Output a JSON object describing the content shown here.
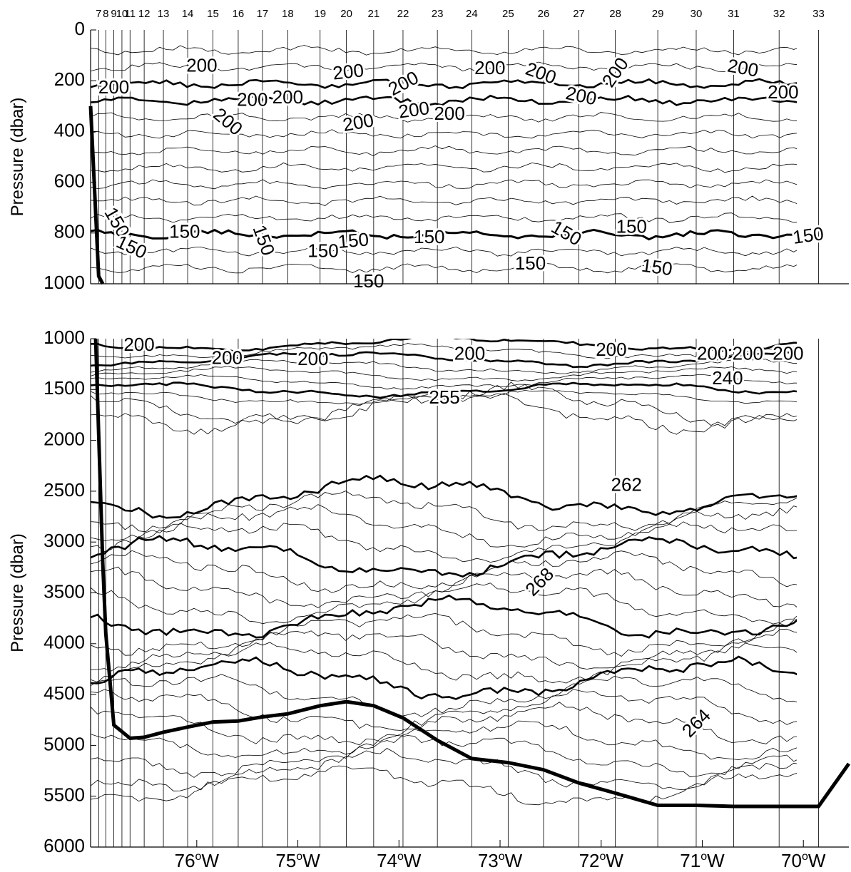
{
  "chart_data": [
    {
      "type": "contour",
      "panel": "upper",
      "title": "",
      "xlabel": "",
      "ylabel": "Pressure (dbar)",
      "ylim": [
        0,
        1000
      ],
      "y_inverted": true,
      "y_ticks": [
        "0",
        "200",
        "400",
        "600",
        "800",
        "1000"
      ],
      "x_range_deg_w": [
        77.05,
        69.55
      ],
      "station_labels": [
        "7",
        "8",
        "9",
        "10",
        "11",
        "12",
        "13",
        "14",
        "15",
        "16",
        "17",
        "18",
        "19",
        "20",
        "21",
        "22",
        "23",
        "24",
        "25",
        "26",
        "27",
        "28",
        "29",
        "30",
        "31",
        "32",
        "33"
      ],
      "station_lon_w": [
        76.97,
        76.9,
        76.82,
        76.74,
        76.66,
        76.52,
        76.33,
        76.09,
        75.84,
        75.59,
        75.35,
        75.1,
        74.78,
        74.52,
        74.25,
        73.96,
        73.62,
        73.28,
        72.92,
        72.57,
        72.22,
        71.86,
        71.44,
        71.06,
        70.69,
        70.24,
        69.85
      ],
      "contour_labels": [
        {
          "text": "200",
          "lon_w": 75.95,
          "pressure": 145,
          "rotate": 0
        },
        {
          "text": "200",
          "lon_w": 74.5,
          "pressure": 170,
          "rotate": -6
        },
        {
          "text": "200",
          "lon_w": 73.95,
          "pressure": 215,
          "rotate": -28
        },
        {
          "text": "200",
          "lon_w": 73.1,
          "pressure": 155,
          "rotate": 0
        },
        {
          "text": "200",
          "lon_w": 72.6,
          "pressure": 175,
          "rotate": 20
        },
        {
          "text": "200",
          "lon_w": 71.85,
          "pressure": 170,
          "rotate": -55
        },
        {
          "text": "200",
          "lon_w": 72.2,
          "pressure": 265,
          "rotate": 12
        },
        {
          "text": "200",
          "lon_w": 70.6,
          "pressure": 155,
          "rotate": 10
        },
        {
          "text": "200",
          "lon_w": 70.2,
          "pressure": 250,
          "rotate": 0
        },
        {
          "text": "200",
          "lon_w": 75.45,
          "pressure": 280,
          "rotate": 0
        },
        {
          "text": "200",
          "lon_w": 75.1,
          "pressure": 270,
          "rotate": 0
        },
        {
          "text": "200",
          "lon_w": 75.7,
          "pressure": 365,
          "rotate": 40
        },
        {
          "text": "200",
          "lon_w": 74.4,
          "pressure": 370,
          "rotate": -10
        },
        {
          "text": "200",
          "lon_w": 73.85,
          "pressure": 320,
          "rotate": -8
        },
        {
          "text": "200",
          "lon_w": 73.5,
          "pressure": 335,
          "rotate": 0
        },
        {
          "text": "200",
          "lon_w": 76.82,
          "pressure": 230,
          "rotate": 0
        },
        {
          "text": "150",
          "lon_w": 76.8,
          "pressure": 760,
          "rotate": 60
        },
        {
          "text": "150",
          "lon_w": 76.65,
          "pressure": 860,
          "rotate": 25
        },
        {
          "text": "150",
          "lon_w": 76.12,
          "pressure": 800,
          "rotate": 0
        },
        {
          "text": "150",
          "lon_w": 75.35,
          "pressure": 830,
          "rotate": 70
        },
        {
          "text": "150",
          "lon_w": 74.75,
          "pressure": 875,
          "rotate": 0
        },
        {
          "text": "150",
          "lon_w": 74.45,
          "pressure": 835,
          "rotate": -5
        },
        {
          "text": "150",
          "lon_w": 73.7,
          "pressure": 820,
          "rotate": 0
        },
        {
          "text": "150",
          "lon_w": 72.35,
          "pressure": 805,
          "rotate": 30
        },
        {
          "text": "150",
          "lon_w": 71.7,
          "pressure": 780,
          "rotate": 0
        },
        {
          "text": "150",
          "lon_w": 72.7,
          "pressure": 925,
          "rotate": 0
        },
        {
          "text": "150",
          "lon_w": 71.45,
          "pressure": 940,
          "rotate": 8
        },
        {
          "text": "150",
          "lon_w": 69.95,
          "pressure": 815,
          "rotate": -8
        },
        {
          "text": "150",
          "lon_w": 74.3,
          "pressure": 995,
          "rotate": 0
        }
      ],
      "bottom_depth": [
        {
          "lon_w": 77.05,
          "pressure": 300
        },
        {
          "lon_w": 76.97,
          "pressure": 970
        },
        {
          "lon_w": 76.93,
          "pressure": 1000
        }
      ]
    },
    {
      "type": "contour",
      "panel": "lower",
      "title": "",
      "xlabel": "",
      "ylabel": "Pressure (dbar)",
      "ylim": [
        1000,
        6000
      ],
      "y_inverted": true,
      "y_ticks": [
        "1000",
        "1500",
        "2000",
        "2500",
        "3000",
        "3500",
        "4000",
        "4500",
        "5000",
        "5500",
        "6000"
      ],
      "x_range_deg_w": [
        77.05,
        69.55
      ],
      "x_ticks": [
        {
          "label": "76",
          "lon_w": 76.0
        },
        {
          "label": "75",
          "lon_w": 75.0
        },
        {
          "label": "74",
          "lon_w": 74.0
        },
        {
          "label": "73",
          "lon_w": 73.0
        },
        {
          "label": "72",
          "lon_w": 72.0
        },
        {
          "label": "71",
          "lon_w": 71.0
        },
        {
          "label": "70",
          "lon_w": 70.0
        }
      ],
      "contour_labels": [
        {
          "text": "200",
          "lon_w": 76.57,
          "pressure": 1070,
          "rotate": 0
        },
        {
          "text": "200",
          "lon_w": 75.7,
          "pressure": 1200,
          "rotate": 0
        },
        {
          "text": "200",
          "lon_w": 74.85,
          "pressure": 1210,
          "rotate": 0
        },
        {
          "text": "200",
          "lon_w": 73.3,
          "pressure": 1160,
          "rotate": 0
        },
        {
          "text": "200",
          "lon_w": 71.9,
          "pressure": 1120,
          "rotate": 0
        },
        {
          "text": "200",
          "lon_w": 70.9,
          "pressure": 1160,
          "rotate": 0
        },
        {
          "text": "200",
          "lon_w": 70.55,
          "pressure": 1160,
          "rotate": 0
        },
        {
          "text": "200",
          "lon_w": 70.15,
          "pressure": 1160,
          "rotate": 0
        },
        {
          "text": "240",
          "lon_w": 70.75,
          "pressure": 1400,
          "rotate": 0
        },
        {
          "text": "255",
          "lon_w": 73.55,
          "pressure": 1590,
          "rotate": 0
        },
        {
          "text": "262",
          "lon_w": 71.75,
          "pressure": 2450,
          "rotate": 0
        },
        {
          "text": "268",
          "lon_w": 72.6,
          "pressure": 3400,
          "rotate": -45
        },
        {
          "text": "264",
          "lon_w": 71.05,
          "pressure": 4790,
          "rotate": -45
        }
      ],
      "bottom_depth": [
        {
          "lon_w": 77.0,
          "pressure": 1000
        },
        {
          "lon_w": 76.93,
          "pressure": 3200
        },
        {
          "lon_w": 76.9,
          "pressure": 3900
        },
        {
          "lon_w": 76.82,
          "pressure": 4800
        },
        {
          "lon_w": 76.66,
          "pressure": 4930
        },
        {
          "lon_w": 76.52,
          "pressure": 4920
        },
        {
          "lon_w": 76.33,
          "pressure": 4870
        },
        {
          "lon_w": 76.09,
          "pressure": 4820
        },
        {
          "lon_w": 75.84,
          "pressure": 4770
        },
        {
          "lon_w": 75.59,
          "pressure": 4760
        },
        {
          "lon_w": 75.35,
          "pressure": 4720
        },
        {
          "lon_w": 75.1,
          "pressure": 4690
        },
        {
          "lon_w": 74.78,
          "pressure": 4610
        },
        {
          "lon_w": 74.52,
          "pressure": 4570
        },
        {
          "lon_w": 74.25,
          "pressure": 4610
        },
        {
          "lon_w": 73.96,
          "pressure": 4730
        },
        {
          "lon_w": 73.62,
          "pressure": 4950
        },
        {
          "lon_w": 73.28,
          "pressure": 5130
        },
        {
          "lon_w": 72.92,
          "pressure": 5170
        },
        {
          "lon_w": 72.57,
          "pressure": 5240
        },
        {
          "lon_w": 72.22,
          "pressure": 5370
        },
        {
          "lon_w": 71.86,
          "pressure": 5470
        },
        {
          "lon_w": 71.44,
          "pressure": 5590
        },
        {
          "lon_w": 71.06,
          "pressure": 5590
        },
        {
          "lon_w": 70.69,
          "pressure": 5600
        },
        {
          "lon_w": 70.24,
          "pressure": 5600
        },
        {
          "lon_w": 69.85,
          "pressure": 5600
        },
        {
          "lon_w": 69.55,
          "pressure": 5180
        }
      ],
      "isolines_pressure_approx": [
        1080,
        1230,
        1420,
        1870,
        2500,
        2770,
        3040,
        3600,
        4150,
        4500
      ]
    }
  ]
}
